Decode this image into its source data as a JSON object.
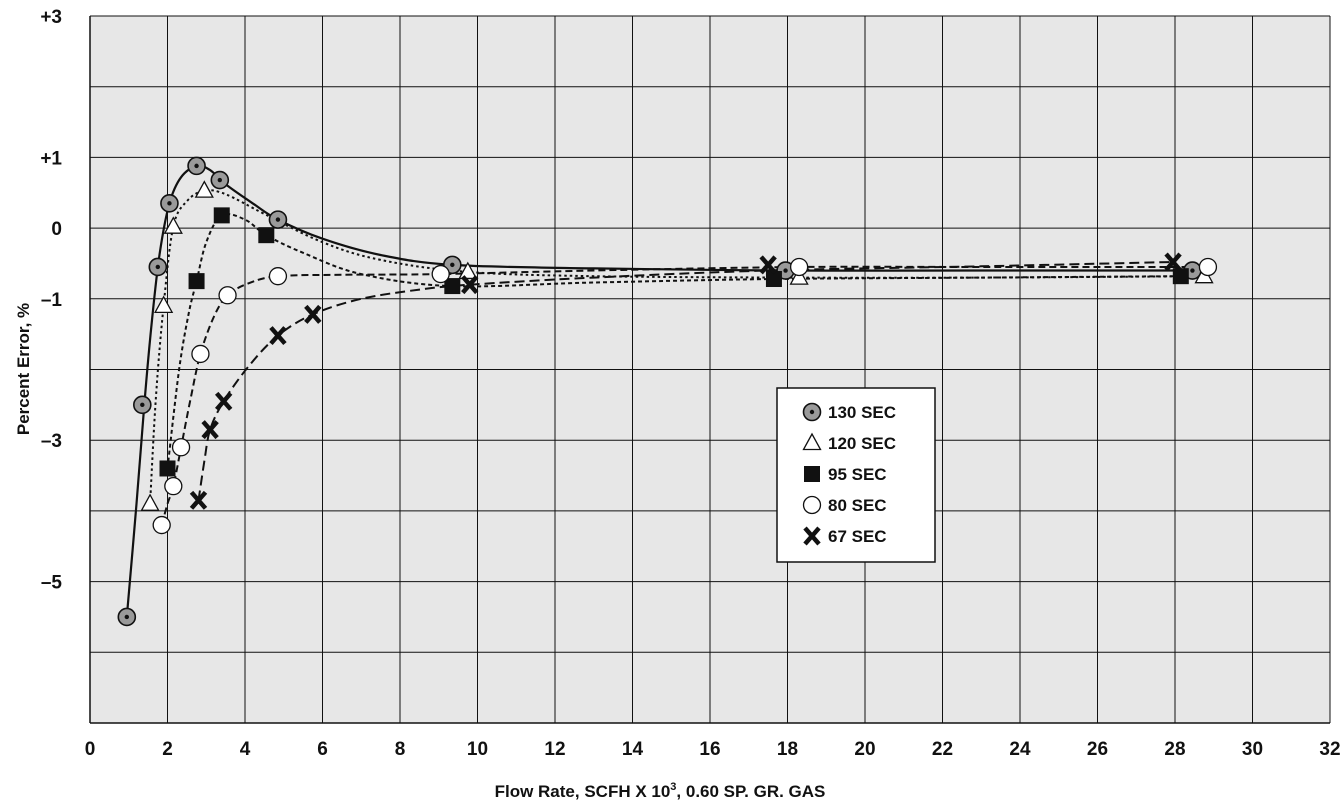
{
  "chart_data": {
    "type": "scatter",
    "title": "",
    "xlabel_main": "Flow Rate, SCFH X 10",
    "xlabel_sup": "3",
    "xlabel_rest": ", 0.60 SP. GR. GAS",
    "ylabel": "Percent Error, %",
    "xlim": [
      0,
      32
    ],
    "ylim": [
      -7,
      3
    ],
    "x_ticks": [
      0,
      2,
      4,
      6,
      8,
      10,
      12,
      14,
      16,
      18,
      20,
      22,
      24,
      26,
      28,
      30,
      32
    ],
    "x_tick_labels": [
      "0",
      "2",
      "4",
      "6",
      "8",
      "10",
      "12",
      "14",
      "16",
      "18",
      "20",
      "22",
      "24",
      "26",
      "28",
      "30",
      "32"
    ],
    "y_gridlines": [
      -7,
      -6,
      -5,
      -4,
      -3,
      -2,
      -1,
      0,
      1,
      2,
      3
    ],
    "y_ticks": [
      3,
      1,
      0,
      -1,
      -3,
      -5
    ],
    "y_tick_labels": [
      "+3",
      "+1",
      "0",
      "–1",
      "–3",
      "–5"
    ],
    "grid": true,
    "legend_position": "center-right",
    "series": [
      {
        "name": "130 SEC",
        "marker": "dot-circle",
        "line": "solid",
        "x": [
          0.95,
          1.35,
          1.75,
          2.05,
          2.75,
          3.35,
          4.85,
          9.35,
          17.95,
          28.45
        ],
        "y": [
          -5.5,
          -2.5,
          -0.55,
          0.35,
          0.88,
          0.68,
          0.12,
          -0.52,
          -0.6,
          -0.6
        ],
        "curve_x": [
          0.95,
          1.2,
          1.4,
          1.6,
          1.8,
          2.05,
          2.35,
          2.75,
          3.1,
          3.5,
          4.2,
          4.85,
          6,
          7.5,
          9.35,
          13,
          17.95,
          23,
          28.45
        ],
        "curve_y": [
          -5.5,
          -3.9,
          -2.5,
          -1.3,
          -0.35,
          0.35,
          0.72,
          0.88,
          0.82,
          0.62,
          0.35,
          0.12,
          -0.15,
          -0.38,
          -0.52,
          -0.57,
          -0.6,
          -0.6,
          -0.6
        ]
      },
      {
        "name": "120 SEC",
        "marker": "triangle",
        "line": "dotted",
        "x": [
          1.55,
          1.9,
          2.15,
          2.95,
          9.75,
          18.3,
          28.75
        ],
        "y": [
          -3.9,
          -1.1,
          0.02,
          0.53,
          -0.62,
          -0.7,
          -0.68
        ],
        "curve_x": [
          1.55,
          1.7,
          1.9,
          2.15,
          2.5,
          2.95,
          3.5,
          4.5,
          6,
          7.5,
          9.75,
          13,
          18.3,
          23,
          28.75
        ],
        "curve_y": [
          -3.9,
          -2.4,
          -1.1,
          0.02,
          0.38,
          0.53,
          0.48,
          0.2,
          -0.2,
          -0.45,
          -0.62,
          -0.68,
          -0.7,
          -0.7,
          -0.68
        ]
      },
      {
        "name": "95 SEC",
        "marker": "square",
        "line": "short-dash",
        "x": [
          2.0,
          2.75,
          3.4,
          4.55,
          9.35,
          17.65,
          28.15
        ],
        "y": [
          -3.4,
          -0.75,
          0.18,
          -0.1,
          -0.82,
          -0.72,
          -0.68
        ],
        "curve_x": [
          2.0,
          2.3,
          2.55,
          2.75,
          3.0,
          3.4,
          4.0,
          4.55,
          5.5,
          7,
          9.35,
          13,
          17.65,
          23,
          28.15
        ],
        "curve_y": [
          -3.4,
          -2.0,
          -1.2,
          -0.75,
          -0.2,
          0.18,
          0.12,
          -0.1,
          -0.35,
          -0.65,
          -0.82,
          -0.77,
          -0.72,
          -0.7,
          -0.68
        ]
      },
      {
        "name": "80 SEC",
        "marker": "circle",
        "line": "dashed",
        "x": [
          1.85,
          2.15,
          2.35,
          2.85,
          3.55,
          4.85,
          9.05,
          18.3,
          28.85
        ],
        "y": [
          -4.2,
          -3.65,
          -3.1,
          -1.78,
          -0.95,
          -0.68,
          -0.65,
          -0.55,
          -0.55
        ],
        "curve_x": [
          1.85,
          2.0,
          2.15,
          2.35,
          2.6,
          2.85,
          3.2,
          3.55,
          4.1,
          4.85,
          6.5,
          9.05,
          13,
          18.3,
          23,
          28.85
        ],
        "curve_y": [
          -4.2,
          -3.9,
          -3.65,
          -3.1,
          -2.4,
          -1.78,
          -1.25,
          -0.95,
          -0.78,
          -0.68,
          -0.66,
          -0.65,
          -0.6,
          -0.55,
          -0.55,
          -0.55
        ]
      },
      {
        "name": "67 SEC",
        "marker": "x",
        "line": "long-dash",
        "x": [
          2.8,
          3.1,
          3.45,
          4.85,
          5.75,
          9.8,
          17.5,
          27.95
        ],
        "y": [
          -3.85,
          -2.85,
          -2.45,
          -1.52,
          -1.22,
          -0.8,
          -0.52,
          -0.48
        ],
        "curve_x": [
          2.8,
          2.95,
          3.1,
          3.45,
          4.1,
          4.85,
          5.75,
          7,
          8.5,
          9.8,
          13,
          17.5,
          23,
          27.95
        ],
        "curve_y": [
          -3.85,
          -3.3,
          -2.85,
          -2.45,
          -1.95,
          -1.52,
          -1.22,
          -1.0,
          -0.87,
          -0.8,
          -0.7,
          -0.6,
          -0.54,
          -0.48
        ]
      }
    ]
  },
  "legend": {
    "items": [
      "130 SEC",
      "120 SEC",
      "95 SEC",
      "80 SEC",
      "67 SEC"
    ]
  }
}
